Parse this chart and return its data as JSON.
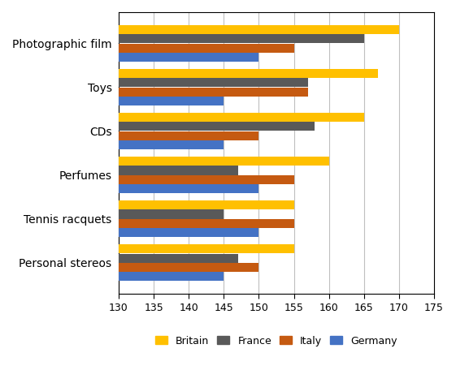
{
  "categories": [
    "Photographic film",
    "Toys",
    "CDs",
    "Perfumes",
    "Tennis racquets",
    "Personal stereos"
  ],
  "countries": [
    "Britain",
    "France",
    "Italy",
    "Germany"
  ],
  "colors": [
    "#FFC000",
    "#595959",
    "#C55A11",
    "#4472C4"
  ],
  "values": {
    "Britain": [
      170,
      167,
      165,
      160,
      155,
      155
    ],
    "France": [
      165,
      157,
      158,
      147,
      145,
      147
    ],
    "Italy": [
      155,
      157,
      150,
      155,
      155,
      150
    ],
    "Germany": [
      150,
      145,
      145,
      150,
      150,
      145
    ]
  },
  "xlim": [
    130,
    175
  ],
  "xticks": [
    130,
    135,
    140,
    145,
    150,
    155,
    160,
    165,
    170,
    175
  ],
  "bar_height": 0.21,
  "figsize": [
    5.61,
    4.72
  ],
  "dpi": 100
}
